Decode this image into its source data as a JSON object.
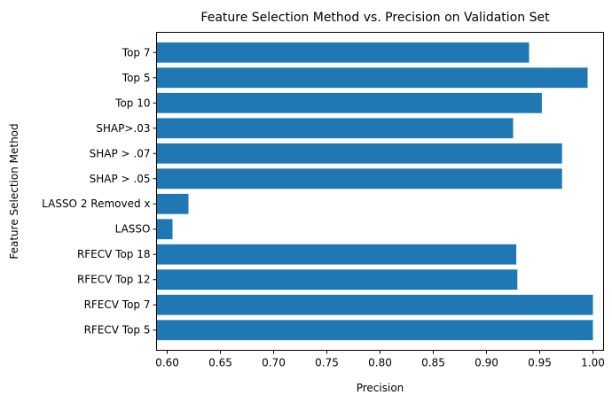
{
  "chart_data": {
    "type": "bar",
    "orientation": "horizontal",
    "title": "Feature Selection Method vs. Precision on Validation Set",
    "xlabel": "Precision",
    "ylabel": "Feature Selection Method",
    "categories": [
      "RFECV Top 5",
      "RFECV Top 7",
      "RFECV Top 12",
      "RFECV Top 18",
      "LASSO",
      "LASSO 2 Removed x",
      "SHAP > .05",
      "SHAP > .07",
      "SHAP>.03",
      "Top 10",
      "Top 5",
      "Top 7"
    ],
    "values": [
      1.0,
      1.0,
      0.929,
      0.928,
      0.605,
      0.62,
      0.971,
      0.971,
      0.925,
      0.952,
      0.995,
      0.94
    ],
    "xlim": [
      0.59,
      1.01
    ],
    "xticks": [
      0.6,
      0.65,
      0.7,
      0.75,
      0.8,
      0.85,
      0.9,
      0.95,
      1.0
    ],
    "xtick_labels": [
      "0.60",
      "0.65",
      "0.70",
      "0.75",
      "0.80",
      "0.85",
      "0.90",
      "0.95",
      "1.00"
    ],
    "bar_color": "#1f77b4",
    "grid": false,
    "legend": "none"
  }
}
